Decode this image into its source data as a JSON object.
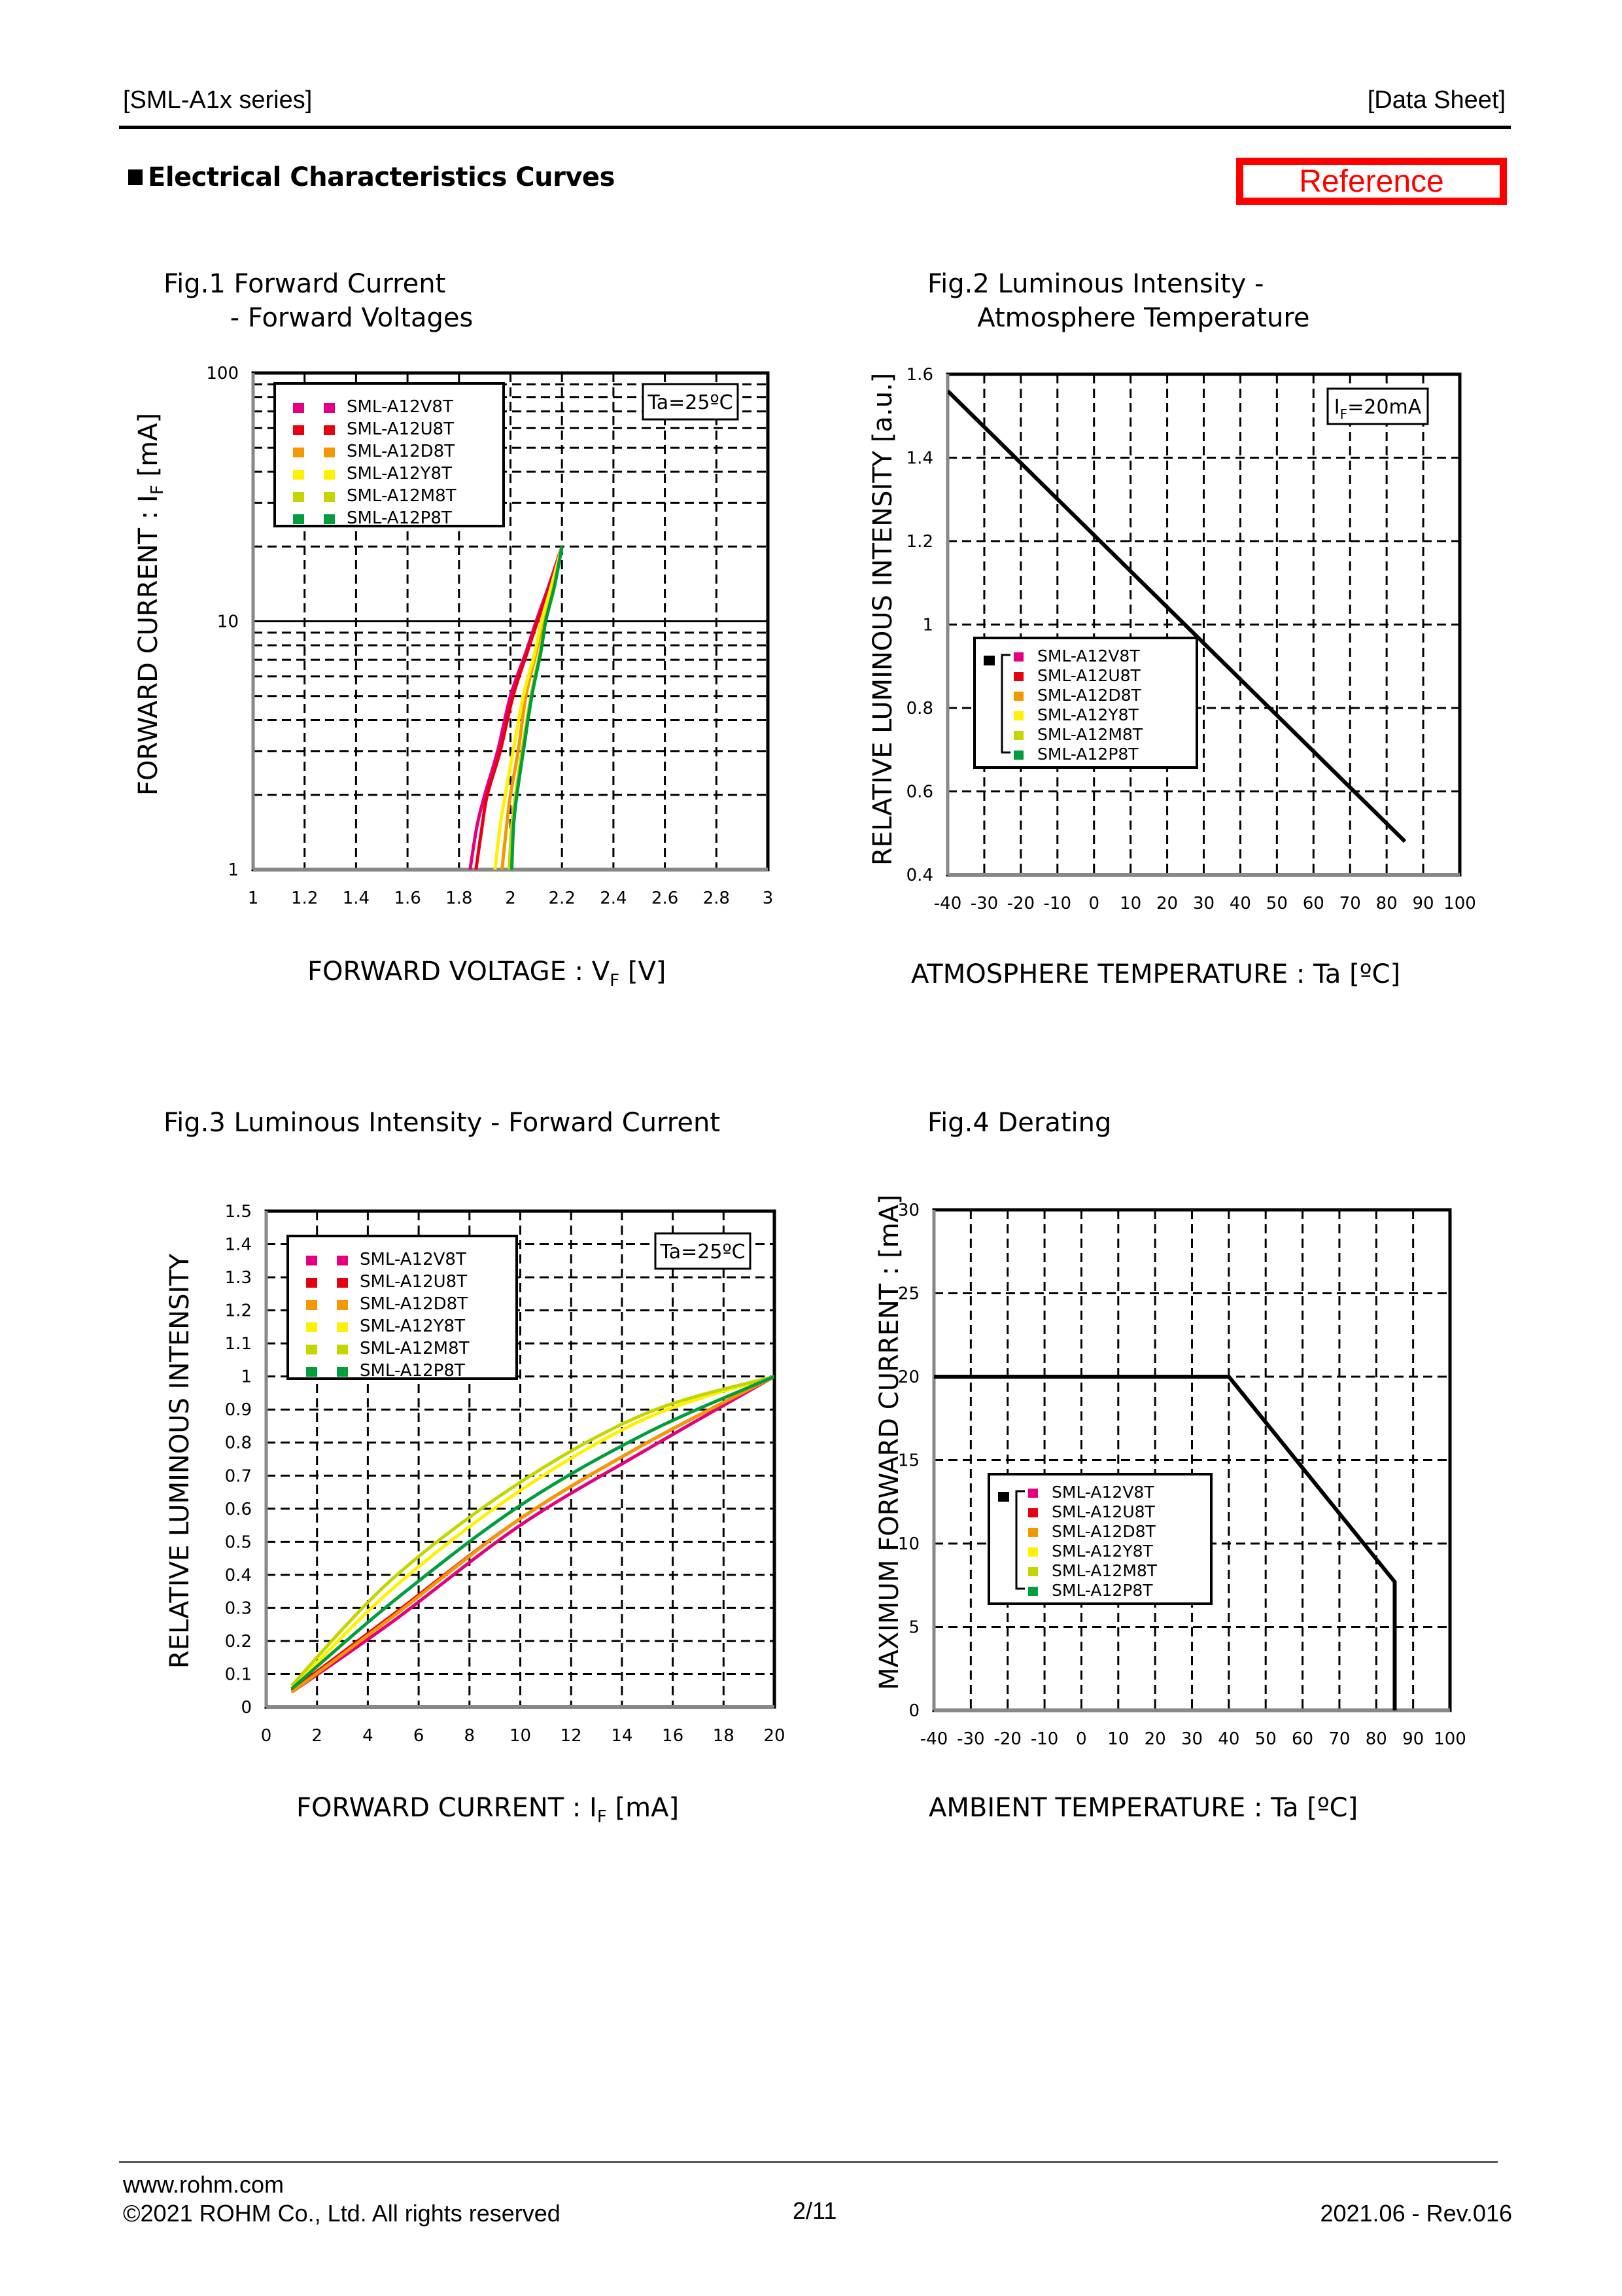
{
  "header": {
    "left": "[SML-A1x series]",
    "right": "[Data Sheet]"
  },
  "section": {
    "title": "Electrical Characteristics Curves",
    "badge": "Reference",
    "badge_color": "#FF0000"
  },
  "legend_series": [
    {
      "name": "SML-A12V8T",
      "color": "#E4007F"
    },
    {
      "name": "SML-A12U8T",
      "color": "#E60012"
    },
    {
      "name": "SML-A12D8T",
      "color": "#F39800"
    },
    {
      "name": "SML-A12Y8T",
      "color": "#FFF100"
    },
    {
      "name": "SML-A12M8T",
      "color": "#C3D600"
    },
    {
      "name": "SML-A12P8T",
      "color": "#009E3C"
    }
  ],
  "chart_data": [
    {
      "id": "fig1",
      "type": "line",
      "title_line1": "Fig.1 Forward Current",
      "title_line2": "        - Forward Voltages",
      "xlabel": "FORWARD VOLTAGE : V",
      "xlabel_sub": "F",
      "xlabel_unit": " [V]",
      "ylabel": "FORWARD CURRENT : I",
      "ylabel_sub": "F",
      "ylabel_unit": " [mA]",
      "xlim": [
        1,
        3
      ],
      "ylim": [
        1,
        100
      ],
      "yscale": "log",
      "xticks": [
        "1",
        "1.2",
        "1.4",
        "1.6",
        "1.8",
        "2",
        "2.2",
        "2.4",
        "2.6",
        "2.8",
        "3"
      ],
      "yticks": [
        "1",
        "10",
        "100"
      ],
      "grid": true,
      "annotation": "Ta=25ºC",
      "legend": "top-left",
      "series": [
        {
          "name": "SML-A12V8T",
          "x": [
            1.843,
            1.87,
            1.9,
            1.95,
            2.0,
            2.06,
            2.1,
            2.15,
            2.2
          ],
          "y": [
            1,
            1.5,
            2,
            3,
            5,
            7.5,
            10,
            14,
            20
          ]
        },
        {
          "name": "SML-A12U8T",
          "x": [
            1.866,
            1.89,
            1.91,
            1.96,
            2.01,
            2.065,
            2.105,
            2.155,
            2.2
          ],
          "y": [
            1,
            1.5,
            2,
            3,
            5,
            7.5,
            10,
            14,
            20
          ]
        },
        {
          "name": "SML-A12D8T",
          "x": [
            1.967,
            1.985,
            2.0,
            2.03,
            2.06,
            2.1,
            2.125,
            2.165,
            2.2
          ],
          "y": [
            1,
            1.5,
            2,
            3,
            5,
            7.5,
            10,
            14,
            20
          ]
        },
        {
          "name": "SML-A12Y8T",
          "x": [
            1.94,
            1.96,
            1.98,
            2.01,
            2.05,
            2.095,
            2.12,
            2.16,
            2.2
          ],
          "y": [
            1,
            1.5,
            2,
            3,
            5,
            7.5,
            10,
            14,
            20
          ]
        },
        {
          "name": "SML-A12M8T",
          "x": [
            1.995,
            2.005,
            2.02,
            2.045,
            2.08,
            2.115,
            2.135,
            2.17,
            2.2
          ],
          "y": [
            1,
            1.5,
            2,
            3,
            5,
            7.5,
            10,
            14,
            20
          ]
        },
        {
          "name": "SML-A12P8T",
          "x": [
            2.005,
            2.012,
            2.025,
            2.05,
            2.083,
            2.118,
            2.137,
            2.172,
            2.2
          ],
          "y": [
            1,
            1.5,
            2,
            3,
            5,
            7.5,
            10,
            14,
            20
          ]
        }
      ]
    },
    {
      "id": "fig2",
      "type": "line",
      "title_line1": "Fig.2 Luminous Intensity -",
      "title_line2": "      Atmosphere Temperature",
      "xlabel": "ATMOSPHERE TEMPERATURE : Ta [ºC]",
      "ylabel": "RELATIVE LUMINOUS INTENSITY [a.u.]",
      "xlim": [
        -40,
        100
      ],
      "ylim": [
        0.4,
        1.6
      ],
      "xticks": [
        "-40",
        "-30",
        "-20",
        "-10",
        "0",
        "10",
        "20",
        "30",
        "40",
        "50",
        "60",
        "70",
        "80",
        "90",
        "100"
      ],
      "yticks": [
        "0.4",
        "0.6",
        "0.8",
        "1",
        "1.2",
        "1.4",
        "1.6"
      ],
      "grid": true,
      "annotation": "I",
      "annotation_sub": "F",
      "annotation_rest": "=20mA",
      "legend": "bottom-left",
      "series": [
        {
          "name": "All (SML-A12V8T/U8T/D8T/Y8T/M8T/P8T)",
          "color": "#000000",
          "x": [
            -40,
            85
          ],
          "y": [
            1.56,
            0.48
          ]
        }
      ]
    },
    {
      "id": "fig3",
      "type": "line",
      "title_line1": "Fig.3 Luminous Intensity - Forward Current",
      "xlabel": "FORWARD CURRENT : I",
      "xlabel_sub": "F",
      "xlabel_unit": " [mA]",
      "ylabel": "RELATIVE LUMINOUS INTENSITY",
      "xlim": [
        0,
        20
      ],
      "ylim": [
        0,
        1.5
      ],
      "xticks": [
        "0",
        "2",
        "4",
        "6",
        "8",
        "10",
        "12",
        "14",
        "16",
        "18",
        "20"
      ],
      "yticks": [
        "0",
        "0.1",
        "0.2",
        "0.3",
        "0.4",
        "0.5",
        "0.6",
        "0.7",
        "0.8",
        "0.9",
        "1",
        "1.1",
        "1.2",
        "1.3",
        "1.4",
        "1.5"
      ],
      "grid": true,
      "annotation": "Ta=25ºC",
      "legend": "top-left",
      "series": [
        {
          "name": "SML-A12V8T",
          "x": [
            1,
            5,
            10,
            15,
            20
          ],
          "y": [
            0.045,
            0.26,
            0.55,
            0.78,
            1.0
          ]
        },
        {
          "name": "SML-A12U8T",
          "x": [
            1,
            5,
            10,
            15,
            20
          ],
          "y": [
            0.05,
            0.28,
            0.57,
            0.8,
            1.0
          ]
        },
        {
          "name": "SML-A12D8T",
          "x": [
            1,
            5,
            10,
            15,
            20
          ],
          "y": [
            0.045,
            0.275,
            0.57,
            0.8,
            1.0
          ]
        },
        {
          "name": "SML-A12Y8T",
          "x": [
            1,
            5,
            10,
            15,
            20
          ],
          "y": [
            0.055,
            0.36,
            0.655,
            0.875,
            1.0
          ]
        },
        {
          "name": "SML-A12M8T",
          "x": [
            1,
            5,
            10,
            15,
            20
          ],
          "y": [
            0.065,
            0.39,
            0.68,
            0.89,
            1.0
          ]
        },
        {
          "name": "SML-A12P8T",
          "x": [
            1,
            5,
            10,
            15,
            20
          ],
          "y": [
            0.055,
            0.32,
            0.61,
            0.83,
            1.0
          ]
        }
      ]
    },
    {
      "id": "fig4",
      "type": "line",
      "title_line1": "Fig.4 Derating",
      "xlabel": "AMBIENT TEMPERATURE : Ta [ºC]",
      "ylabel": "MAXIMUM FORWARD CURRENT :  [mA]",
      "xlim": [
        -40,
        100
      ],
      "ylim": [
        0,
        30
      ],
      "xticks": [
        "-40",
        "-30",
        "-20",
        "-10",
        "0",
        "10",
        "20",
        "30",
        "40",
        "50",
        "60",
        "70",
        "80",
        "90",
        "100"
      ],
      "yticks": [
        "0",
        "5",
        "10",
        "15",
        "20",
        "25",
        "30"
      ],
      "grid": true,
      "legend": "bottom-left",
      "series": [
        {
          "name": "All (SML-A12V8T/U8T/D8T/Y8T/M8T/P8T)",
          "color": "#000000",
          "x": [
            -40,
            40,
            85,
            85
          ],
          "y": [
            20,
            20,
            7.7,
            0
          ]
        }
      ]
    }
  ],
  "footer": {
    "url": "www.rohm.com",
    "copyright": "©2021 ROHM Co., Ltd. All rights reserved",
    "page": "2/11",
    "revision": "2021.06 - Rev.016"
  }
}
